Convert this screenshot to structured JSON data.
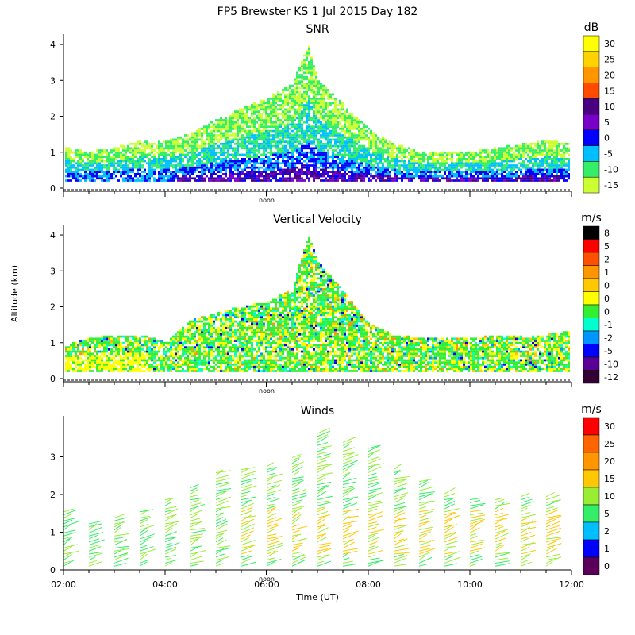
{
  "figure_title": "FP5 Brewster KS   1 Jul 2015 Day 182",
  "ylabel": "Altitude (km)",
  "xlabel": "Time (UT)",
  "noon_label": "noon",
  "x_ticks": [
    "02:00",
    "04:00",
    "06:00",
    "08:00",
    "10:00",
    "12:00"
  ],
  "chart_data": [
    {
      "type": "heatmap",
      "title": "SNR",
      "colorbar_unit": "dB",
      "colorbar_labels": [
        "30",
        "25",
        "20",
        "15",
        "10",
        "5",
        "0",
        "-5",
        "-10",
        "-15"
      ],
      "colorbar_colors": [
        "#ffff00",
        "#ffd200",
        "#ff9600",
        "#ff4b00",
        "#4b0082",
        "#7800c8",
        "#0000ff",
        "#00bfff",
        "#33ee66",
        "#ccff33"
      ],
      "x_range": [
        "02:00",
        "12:00"
      ],
      "ylim": [
        0,
        4.2
      ],
      "y_ticks": [
        "0",
        "1",
        "2",
        "3",
        "4"
      ],
      "series": [
        {
          "time": [
            "02:00",
            "02:30",
            "03:00",
            "03:30",
            "04:00",
            "04:30",
            "05:00",
            "05:30",
            "06:00",
            "06:30",
            "06:48",
            "07:00",
            "07:30",
            "08:00",
            "08:30",
            "09:00",
            "09:30",
            "10:00",
            "10:30",
            "11:00",
            "11:30",
            "12:00"
          ],
          "max_height_km": [
            1.1,
            1.0,
            1.1,
            1.3,
            1.3,
            1.5,
            1.9,
            2.2,
            2.5,
            2.9,
            4.0,
            3.0,
            2.3,
            1.6,
            1.2,
            1.0,
            1.0,
            1.0,
            1.1,
            1.2,
            1.3,
            1.2
          ]
        }
      ]
    },
    {
      "type": "heatmap",
      "title": "Vertical Velocity",
      "colorbar_unit": "m/s",
      "colorbar_labels": [
        "8",
        "5",
        "2",
        "1",
        "0",
        "0",
        "0",
        "-1",
        "-2",
        "-5",
        "-10",
        "-12"
      ],
      "colorbar_colors": [
        "#000000",
        "#ff0000",
        "#ff5000",
        "#ff9600",
        "#ffc800",
        "#ffff00",
        "#33ee33",
        "#00ffcc",
        "#0096ff",
        "#0000ff",
        "#5a0096",
        "#330033"
      ],
      "x_range": [
        "02:00",
        "12:00"
      ],
      "ylim": [
        0,
        4.2
      ],
      "y_ticks": [
        "0",
        "1",
        "2",
        "3",
        "4"
      ],
      "series": [
        {
          "time": [
            "02:00",
            "02:30",
            "03:00",
            "03:30",
            "04:00",
            "04:30",
            "05:00",
            "05:30",
            "06:00",
            "06:30",
            "06:48",
            "07:00",
            "07:30",
            "08:00",
            "08:30",
            "09:00",
            "09:30",
            "10:00",
            "10:30",
            "11:00",
            "11:30",
            "12:00"
          ],
          "max_height_km": [
            0.9,
            1.1,
            1.2,
            1.2,
            1.0,
            1.6,
            1.8,
            2.0,
            2.1,
            2.5,
            4.0,
            3.2,
            2.4,
            1.5,
            1.2,
            1.1,
            1.1,
            1.1,
            1.2,
            1.2,
            1.2,
            1.3
          ]
        }
      ]
    },
    {
      "type": "scatter",
      "title": "Winds",
      "colorbar_unit": "m/s",
      "colorbar_labels": [
        "30",
        "25",
        "20",
        "15",
        "10",
        "5",
        "2",
        "1",
        "0"
      ],
      "colorbar_colors": [
        "#ff0000",
        "#ff6400",
        "#ff9600",
        "#ffc800",
        "#99ee33",
        "#33ee66",
        "#00bfff",
        "#0000ff",
        "#5a005a"
      ],
      "x_range": [
        "02:00",
        "12:00"
      ],
      "ylim": [
        0,
        4.0
      ],
      "y_ticks": [
        "0",
        "1",
        "2",
        "3"
      ],
      "profiles": [
        {
          "time": "02:00",
          "top_km": 1.6
        },
        {
          "time": "02:30",
          "top_km": 1.3
        },
        {
          "time": "03:00",
          "top_km": 1.4
        },
        {
          "time": "03:30",
          "top_km": 1.6
        },
        {
          "time": "04:00",
          "top_km": 1.9
        },
        {
          "time": "04:30",
          "top_km": 2.2
        },
        {
          "time": "05:00",
          "top_km": 2.6
        },
        {
          "time": "05:30",
          "top_km": 2.7
        },
        {
          "time": "06:00",
          "top_km": 2.8
        },
        {
          "time": "06:30",
          "top_km": 3.0
        },
        {
          "time": "07:00",
          "top_km": 3.7
        },
        {
          "time": "07:30",
          "top_km": 3.4
        },
        {
          "time": "08:00",
          "top_km": 3.3
        },
        {
          "time": "08:30",
          "top_km": 2.7
        },
        {
          "time": "09:00",
          "top_km": 2.4
        },
        {
          "time": "09:30",
          "top_km": 2.1
        },
        {
          "time": "10:00",
          "top_km": 1.9
        },
        {
          "time": "10:30",
          "top_km": 1.9
        },
        {
          "time": "11:00",
          "top_km": 2.0
        },
        {
          "time": "11:30",
          "top_km": 2.0
        }
      ]
    }
  ]
}
